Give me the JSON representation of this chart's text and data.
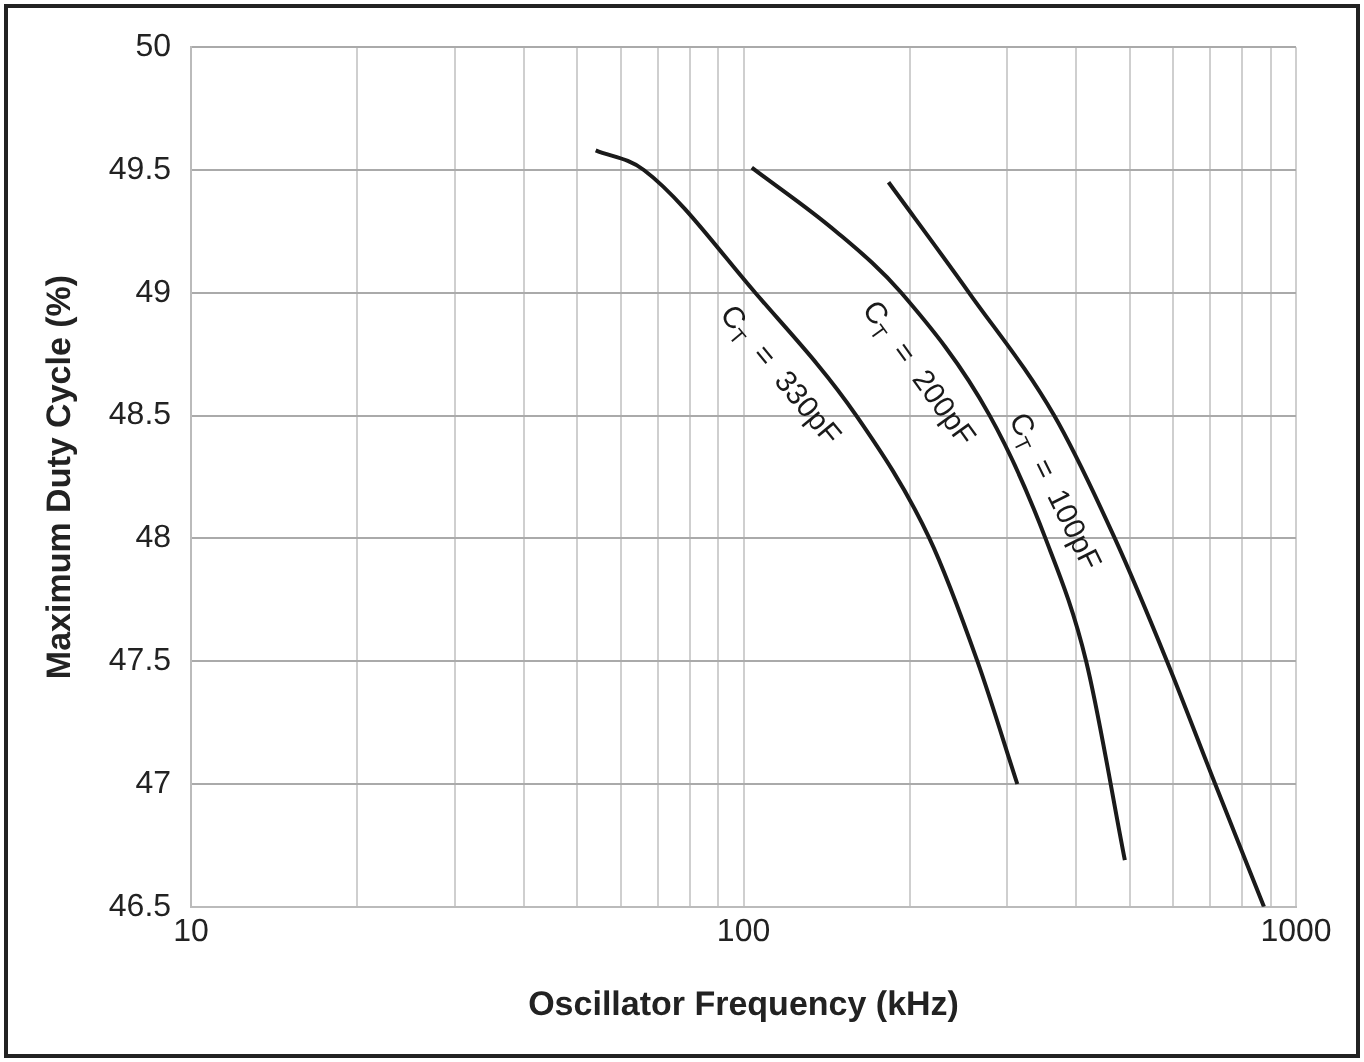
{
  "chart_data": {
    "type": "line",
    "xlabel": "Oscillator Frequency (kHz)",
    "ylabel": "Maximum Duty Cycle (%)",
    "log": "x",
    "xlim": [
      10,
      1000
    ],
    "xticks": [
      10,
      {
        "value": 20,
        "label": null
      },
      {
        "value": 30,
        "label": null
      },
      {
        "value": 40,
        "label": null
      },
      {
        "value": 50,
        "label": null
      },
      {
        "value": 60,
        "label": null
      },
      {
        "value": 70,
        "label": null
      },
      {
        "value": 80,
        "label": null
      },
      {
        "value": 90,
        "label": null
      },
      100,
      {
        "value": 200,
        "label": null
      },
      {
        "value": 300,
        "label": null
      },
      {
        "value": 400,
        "label": null
      },
      {
        "value": 500,
        "label": null
      },
      {
        "value": 600,
        "label": null
      },
      {
        "value": 700,
        "label": null
      },
      {
        "value": 800,
        "label": null
      },
      {
        "value": 900,
        "label": null
      },
      1000
    ],
    "ylim": [
      46.5,
      50
    ],
    "yticks": [
      46.5,
      47,
      47.5,
      48,
      48.5,
      49,
      49.5,
      50
    ],
    "grid": true,
    "legend": false,
    "marker": "none",
    "line_style": "solid",
    "series": [
      {
        "name": "C$_{T}$ = 330pF",
        "color": "#1a1a1a",
        "x": [
          54,
          66,
          105,
          160,
          217,
          265,
          313
        ],
        "values": [
          49.58,
          49.5,
          49,
          48.5,
          48,
          47.5,
          47
        ]
      },
      {
        "name": "C$_{T}$ = 200pF",
        "color": "#1a1a1a",
        "x": [
          103.5,
          147,
          193,
          279,
          352,
          417,
          490
        ],
        "values": [
          49.51,
          49.25,
          49,
          48.5,
          48,
          47.5,
          46.69
        ]
      },
      {
        "name": "C$_{T}$ = 100pF",
        "color": "#1a1a1a",
        "x": [
          183,
          256,
          365,
          470,
          584,
          714,
          875
        ],
        "values": [
          49.45,
          49,
          48.5,
          48,
          47.5,
          47,
          46.5
        ]
      }
    ]
  }
}
